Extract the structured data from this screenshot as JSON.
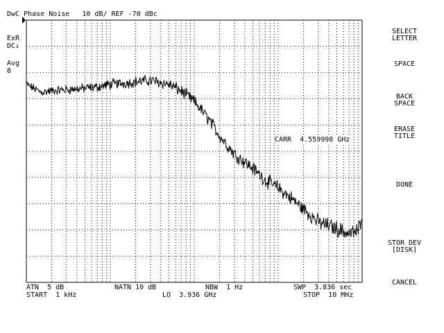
{
  "header": {
    "title": "DwC Phase Noise   10 dB/ REF -70 dBc"
  },
  "left_annotations": {
    "exr": "ExR",
    "dc": "DC↓",
    "avg": "Avg",
    "avg_count": "8"
  },
  "marker": {
    "label": "CARR  4.559998 GHz"
  },
  "footer": {
    "atn": "ATN  5 dB",
    "natn": "NATN 10 dB",
    "nbw": "NBW  1 Hz",
    "swp": "SWP  3.836 sec",
    "start": "START  1 kHz",
    "lo": "LO  3.936 GHz",
    "stop": "STOP  10 MHz"
  },
  "softkeys": [
    {
      "line1": "SELECT",
      "line2": "LETTER"
    },
    {
      "line1": "SPACE",
      "line2": ""
    },
    {
      "line1": "BACK",
      "line2": "SPACE"
    },
    {
      "line1": "ERASE",
      "line2": "TITLE"
    },
    {
      "line1": "DONE",
      "line2": ""
    },
    {
      "line1": "STOR DEV",
      "line2": "[DISK]"
    },
    {
      "line1": "CANCEL",
      "line2": ""
    }
  ],
  "chart_data": {
    "type": "line",
    "x_scale": "log",
    "x_range_hz": [
      1000,
      10000000
    ],
    "y_reference_dbc": -70,
    "y_scale_db_per_div": 10,
    "grid": true,
    "series": [
      {
        "x_hz": [
          1000,
          1500,
          2000,
          3000,
          5000,
          7000,
          10000,
          15000,
          20000,
          30000,
          50000,
          70000,
          100000,
          120000,
          150000,
          200000,
          300000,
          500000,
          700000,
          1000000,
          1500000,
          2000000,
          3000000,
          5000000,
          7000000,
          9000000,
          10000000
        ],
        "y_dbc": [
          -94.5,
          -97.5,
          -97.0,
          -96.5,
          -96.0,
          -95.5,
          -94.5,
          -94.0,
          -93.5,
          -93.0,
          -94.5,
          -97.0,
          -101.0,
          -104.0,
          -108.0,
          -114.0,
          -121.0,
          -126.5,
          -131.0,
          -134.0,
          -138.5,
          -142.0,
          -147.0,
          -149.5,
          -151.5,
          -150.5,
          -143.5
        ]
      }
    ]
  }
}
